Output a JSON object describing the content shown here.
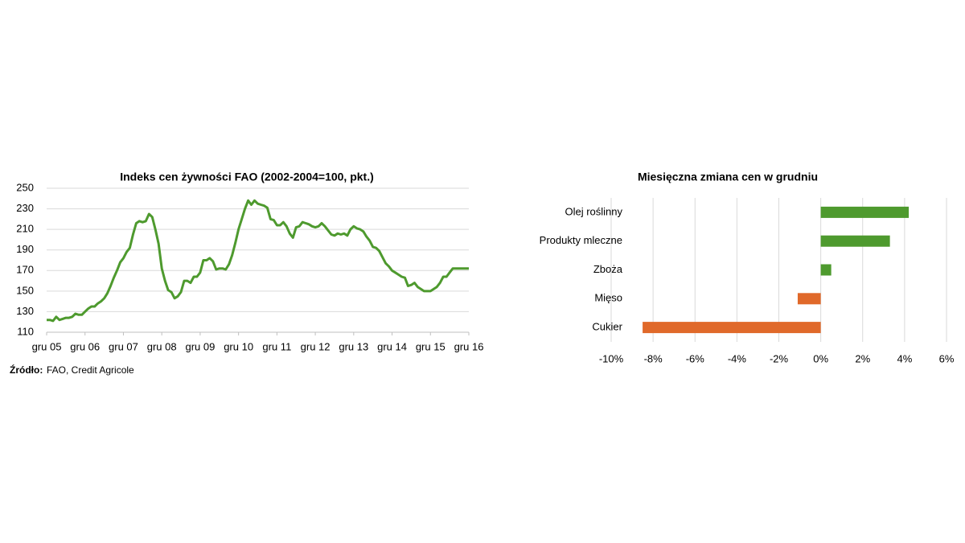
{
  "chart_data": [
    {
      "type": "line",
      "title": "Indeks cen żywności  FAO (2002-2004=100, pkt.)",
      "categories": [
        "gru 05",
        null,
        null,
        null,
        null,
        null,
        null,
        null,
        null,
        null,
        null,
        null,
        "gru 06",
        null,
        null,
        null,
        null,
        null,
        null,
        null,
        null,
        null,
        null,
        null,
        "gru 07",
        null,
        null,
        null,
        null,
        null,
        null,
        null,
        null,
        null,
        null,
        null,
        "gru 08",
        null,
        null,
        null,
        null,
        null,
        null,
        null,
        null,
        null,
        null,
        null,
        "gru 09",
        null,
        null,
        null,
        null,
        null,
        null,
        null,
        null,
        null,
        null,
        null,
        "gru 10",
        null,
        null,
        null,
        null,
        null,
        null,
        null,
        null,
        null,
        null,
        null,
        "gru 11",
        null,
        null,
        null,
        null,
        null,
        null,
        null,
        null,
        null,
        null,
        null,
        "gru 12",
        null,
        null,
        null,
        null,
        null,
        null,
        null,
        null,
        null,
        null,
        null,
        "gru 13",
        null,
        null,
        null,
        null,
        null,
        null,
        null,
        null,
        null,
        null,
        null,
        "gru 14",
        null,
        null,
        null,
        null,
        null,
        null,
        null,
        null,
        null,
        null,
        null,
        "gru 15",
        null,
        null,
        null,
        null,
        null,
        null,
        null,
        null,
        null,
        null,
        null,
        "gru 16"
      ],
      "values": [
        122,
        122,
        121,
        125,
        122,
        123,
        124,
        124,
        125,
        128,
        127,
        127,
        130,
        133,
        135,
        135,
        138,
        140,
        143,
        148,
        155,
        163,
        170,
        178,
        182,
        188,
        192,
        205,
        216,
        218,
        217,
        218,
        225,
        222,
        210,
        196,
        172,
        160,
        151,
        149,
        143,
        145,
        149,
        160,
        160,
        158,
        164,
        164,
        168,
        180,
        180,
        182,
        179,
        171,
        172,
        172,
        171,
        176,
        185,
        197,
        210,
        220,
        230,
        238,
        234,
        238,
        235,
        234,
        233,
        231,
        220,
        219,
        214,
        214,
        217,
        213,
        206,
        202,
        212,
        213,
        217,
        216,
        215,
        213,
        212,
        213,
        216,
        213,
        209,
        205,
        204,
        206,
        205,
        206,
        204,
        210,
        213,
        211,
        210,
        208,
        203,
        199,
        193,
        192,
        189,
        183,
        177,
        174,
        170,
        168,
        166,
        164,
        163,
        155,
        156,
        158,
        154,
        152,
        150,
        150,
        150,
        152,
        154,
        158,
        164,
        164,
        168,
        172,
        172,
        172,
        172,
        172,
        172
      ],
      "color": "#4e9a2e",
      "ylim": [
        110,
        250
      ],
      "yticks": [
        110,
        130,
        150,
        170,
        190,
        210,
        230,
        250
      ],
      "grid": true,
      "source_label": "Źródło:",
      "source": "FAO, Credit Agricole"
    },
    {
      "type": "hbar",
      "title": "Miesięczna zmiana cen w grudniu",
      "categories": [
        "Olej roślinny",
        "Produkty mleczne",
        "Zboża",
        "Mięso",
        "Cukier"
      ],
      "values": [
        4.2,
        3.3,
        0.5,
        -1.1,
        -8.5
      ],
      "colors": [
        "#4e9a2e",
        "#4e9a2e",
        "#4e9a2e",
        "#e0692a",
        "#e0692a"
      ],
      "xlim": [
        -10,
        6
      ],
      "xticks": [
        {
          "value": -10,
          "label": "-10%"
        },
        {
          "value": -8,
          "label": "-8%"
        },
        {
          "value": -6,
          "label": "-6%"
        },
        {
          "value": -4,
          "label": "-4%"
        },
        {
          "value": -2,
          "label": "-2%"
        },
        {
          "value": 0,
          "label": "0%"
        },
        {
          "value": 2,
          "label": "2%"
        },
        {
          "value": 4,
          "label": "4%"
        },
        {
          "value": 6,
          "label": "6%"
        }
      ],
      "grid": true
    }
  ]
}
